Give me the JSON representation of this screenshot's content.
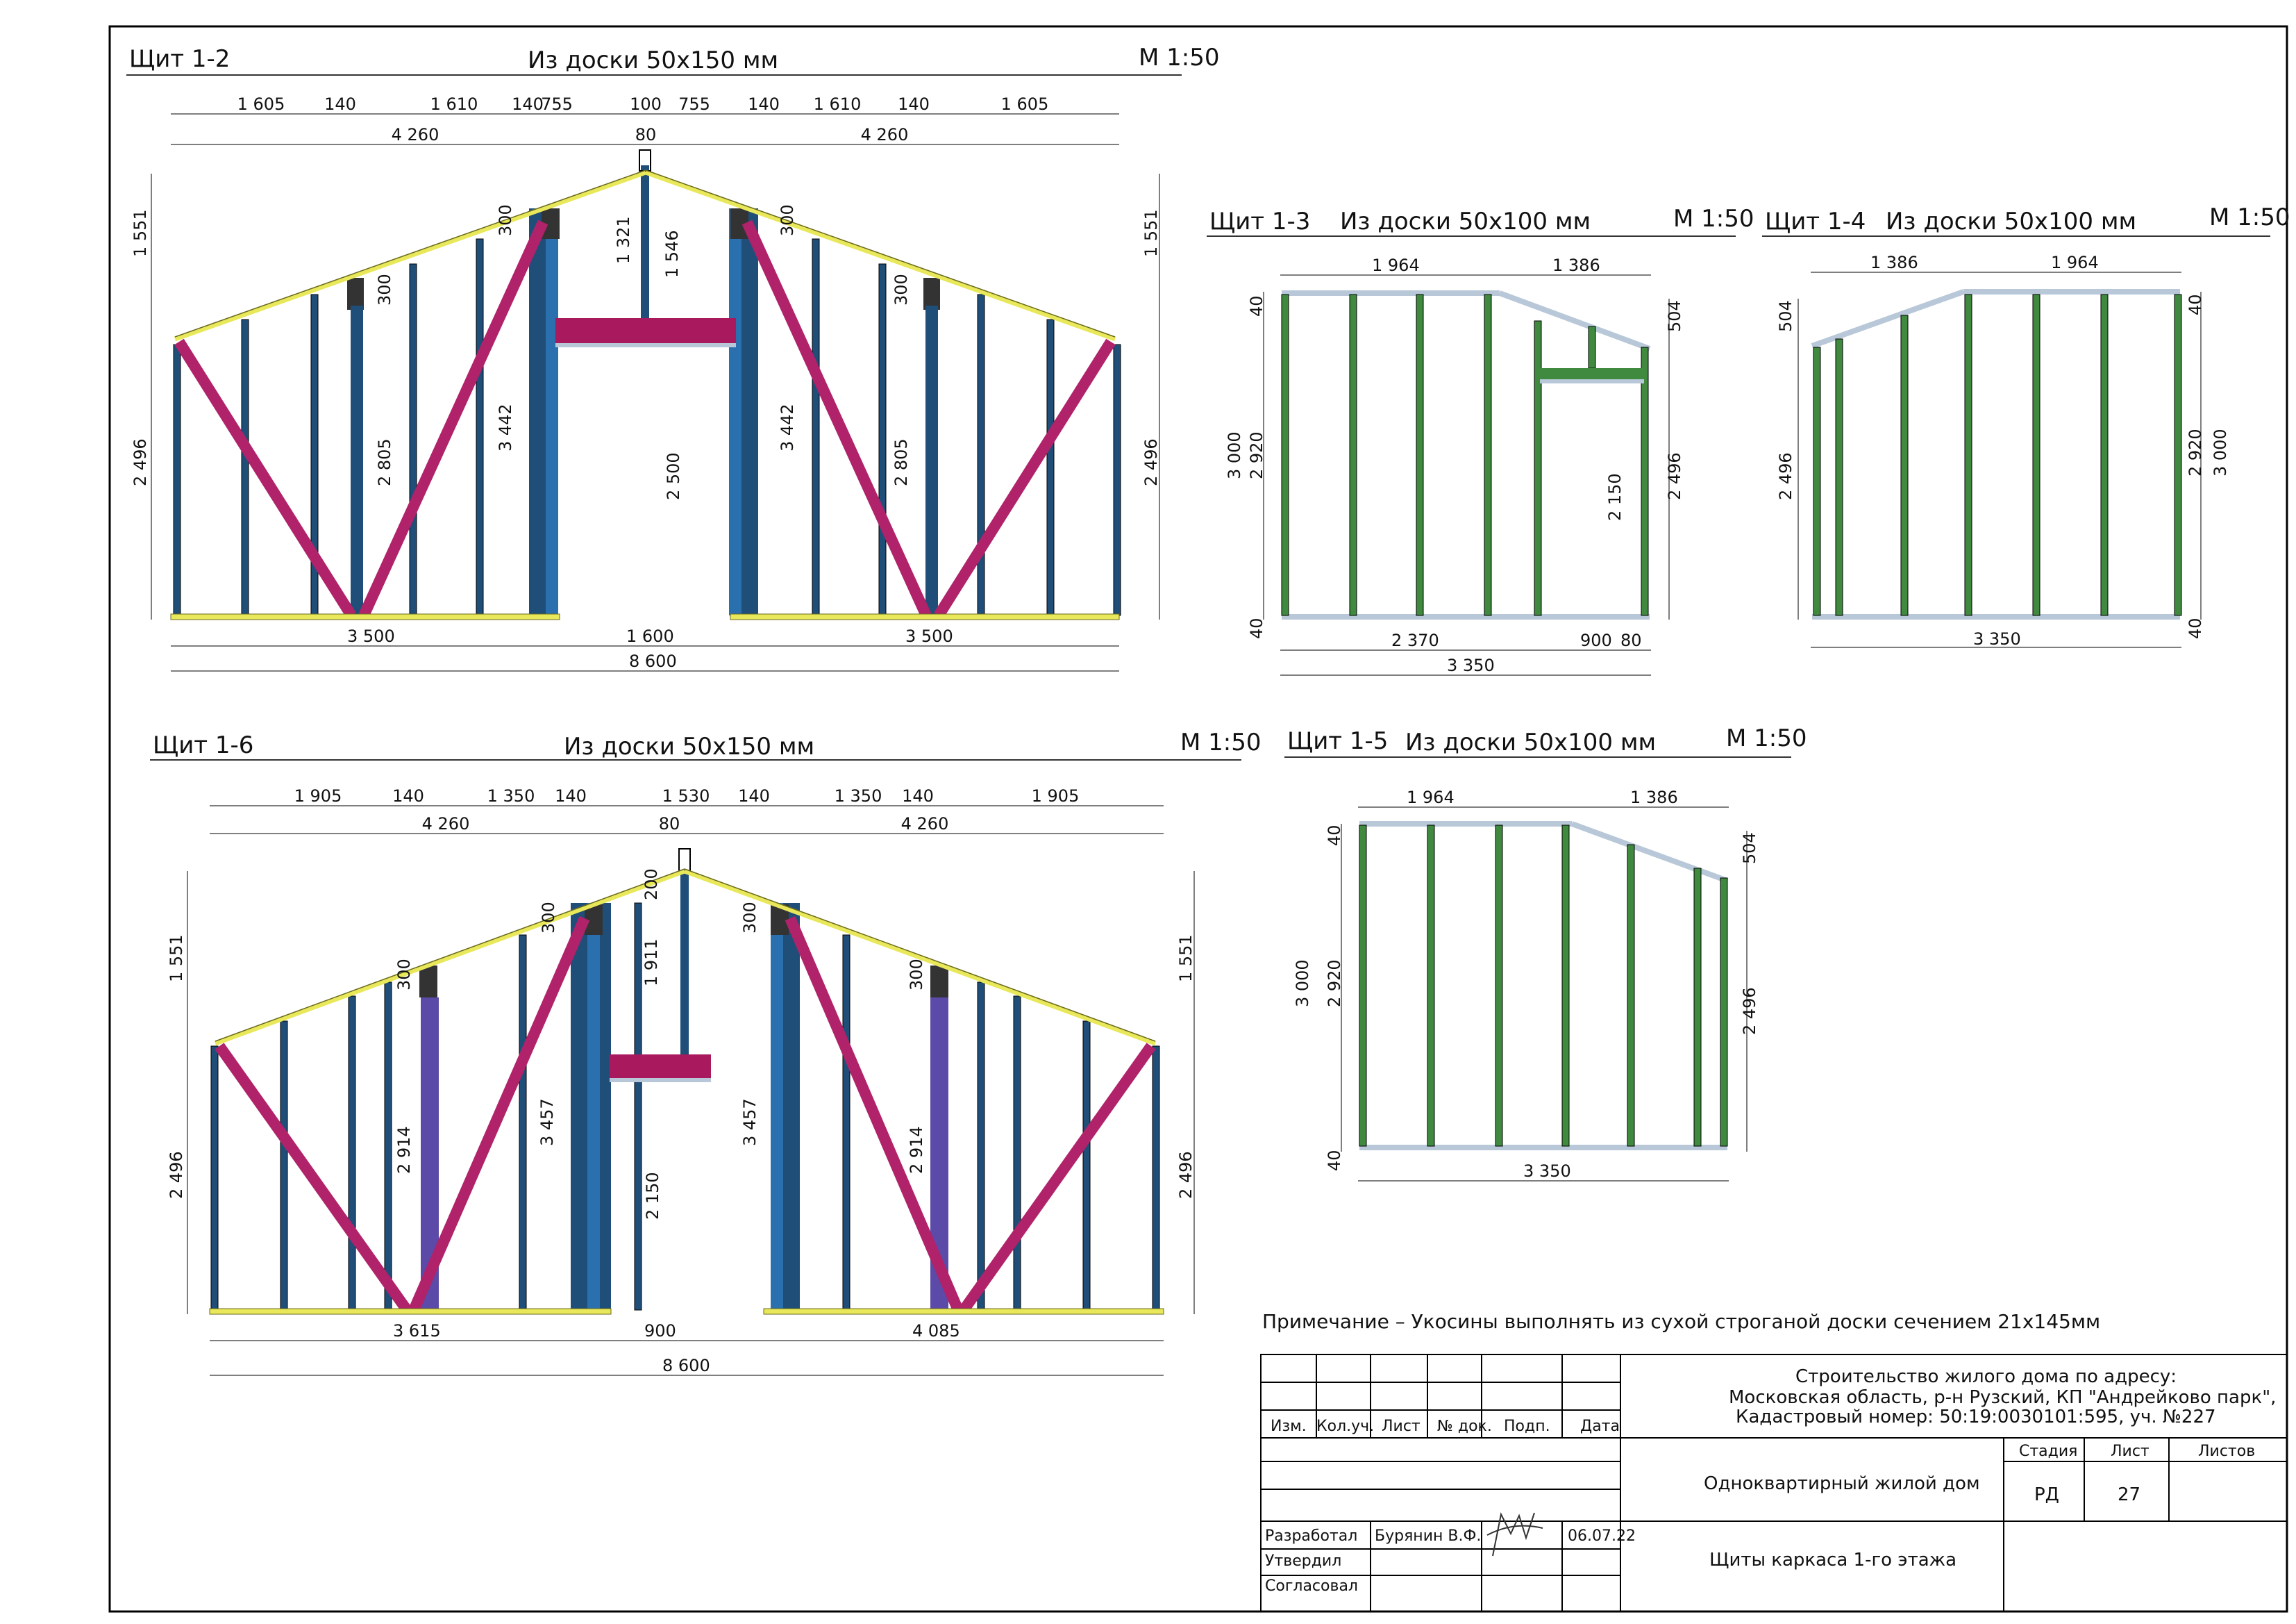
{
  "panels": {
    "p12": {
      "name": "Щит 1-2",
      "material": "Из доски 50х150 мм",
      "scale": "М 1:50",
      "top_dims": [
        "1 605",
        "140",
        "1 610",
        "140",
        "755",
        "100",
        "755",
        "140",
        "1 610",
        "140",
        "1 605"
      ],
      "second_dims": [
        "4 260",
        "80",
        "4 260"
      ],
      "bottom_dims": [
        "3 500",
        "1 600",
        "3 500"
      ],
      "total": "8 600",
      "left_heights": [
        "1 551",
        "2 496"
      ],
      "right_heights": [
        "1 551",
        "2 496"
      ],
      "inner_dims": [
        "300",
        "2 805",
        "3 442",
        "300",
        "1 321",
        "1 546",
        "2 500",
        "300",
        "3 442",
        "300",
        "2 805"
      ]
    },
    "p13": {
      "name": "Щит 1-3",
      "material": "Из доски 50х100 мм",
      "scale": "М 1:50",
      "top_dims": [
        "1 964",
        "1 386"
      ],
      "bottom_dims": [
        "2 370",
        "900",
        "80"
      ],
      "total": "3 350",
      "left_dims": [
        "40",
        "3 000",
        "2 920",
        "40"
      ],
      "right_dims": [
        "504",
        "2 496"
      ],
      "inner_dims": [
        "2 150"
      ]
    },
    "p14": {
      "name": "Щит 1-4",
      "material": "Из доски 50х100 мм",
      "scale": "М 1:50",
      "top_dims": [
        "1 386",
        "1 964"
      ],
      "total": "3 350",
      "left_dims": [
        "504",
        "2 496"
      ],
      "right_dims": [
        "40",
        "2 920",
        "3 000",
        "40"
      ]
    },
    "p16": {
      "name": "Щит 1-6",
      "material": "Из доски 50х150 мм",
      "scale": "М 1:50",
      "top_dims": [
        "1 905",
        "140",
        "1 350",
        "140",
        "1 530",
        "140",
        "1 350",
        "140",
        "1 905"
      ],
      "second_dims": [
        "4 260",
        "80",
        "4 260"
      ],
      "bottom_dims": [
        "3 615",
        "900",
        "4 085"
      ],
      "total": "8 600",
      "left_heights": [
        "1 551",
        "2 496"
      ],
      "right_heights": [
        "1 551",
        "2 496"
      ],
      "inner_dims": [
        "300",
        "300",
        "2 914",
        "3 457",
        "200",
        "1 911",
        "2 150",
        "300",
        "3 457",
        "300",
        "2 914"
      ]
    },
    "p15": {
      "name": "Щит 1-5",
      "material": "Из доски 50х100 мм",
      "scale": "М 1:50",
      "top_dims": [
        "1 964",
        "1 386"
      ],
      "total": "3 350",
      "left_dims": [
        "40",
        "3 000",
        "2 920",
        "40"
      ],
      "right_dims": [
        "504",
        "2 496"
      ]
    }
  },
  "note": "Примечание – Укосины выполнять из сухой строганой доски сечением 21х145мм",
  "title_block": {
    "project": [
      "Строительство жилого дома по адресу:",
      "Московская область, р-н Рузский, КП \"Андрейково парк\",",
      "Кадастровый номер: 50:19:0030101:595, уч. №227"
    ],
    "col_headers": [
      "Изм.",
      "Кол.уч.",
      "Лист",
      "№ док.",
      "Подп.",
      "Дата"
    ],
    "building": "Одноквартирный жилой дом",
    "sheet_title": "Щиты каркаса 1-го этажа",
    "stage_label": "Стадия",
    "sheet_label": "Лист",
    "sheets_label": "Листов",
    "stage": "РД",
    "sheet_no": "27",
    "roles": [
      "Разработал",
      "Утвердил",
      "Согласовал"
    ],
    "developer": "Бурянин В.Ф.",
    "date": "06.07.22"
  },
  "colors": {
    "stud": "#1f4e79",
    "plate": "#e8e85a",
    "brace": "#b0226a",
    "lintel": "#a8195e",
    "green": "#3f8a3f",
    "grey": "#b8c8d8",
    "violet": "#5b4aa8"
  }
}
